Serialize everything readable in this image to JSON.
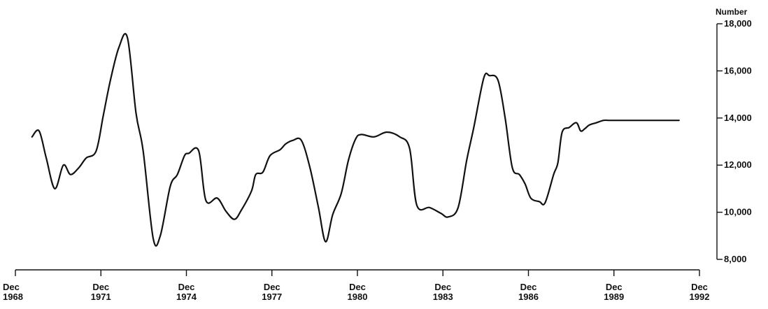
{
  "chart_data": {
    "type": "line",
    "title": "",
    "ylabel": "Number",
    "ylim": [
      8000,
      18000
    ],
    "yticks": [
      8000,
      10000,
      12000,
      14000,
      16000,
      18000
    ],
    "ytick_labels": [
      "8,000",
      "10,000",
      "12,000",
      "14,000",
      "16,000",
      "18,000"
    ],
    "xlim": [
      1968.917,
      1992.917
    ],
    "xticks": [
      1968.917,
      1971.917,
      1974.917,
      1977.917,
      1980.917,
      1983.917,
      1986.917,
      1989.917,
      1992.917
    ],
    "xtick_labels": [
      [
        "Dec",
        "1968"
      ],
      [
        "Dec",
        "1971"
      ],
      [
        "Dec",
        "1974"
      ],
      [
        "Dec",
        "1977"
      ],
      [
        "Dec",
        "1980"
      ],
      [
        "Dec",
        "1983"
      ],
      [
        "Dec",
        "1986"
      ],
      [
        "Dec",
        "1989"
      ],
      [
        "Dec",
        "1992"
      ]
    ],
    "grid": false,
    "y_axis_side": "right",
    "series": [
      {
        "name": "",
        "x": [
          1969.5,
          1969.75,
          1970.0,
          1970.3,
          1970.6,
          1970.85,
          1971.15,
          1971.4,
          1971.75,
          1972.0,
          1972.25,
          1972.55,
          1972.85,
          1973.15,
          1973.4,
          1973.75,
          1974.0,
          1974.35,
          1974.6,
          1974.85,
          1975.0,
          1975.35,
          1975.6,
          1976.0,
          1976.3,
          1976.6,
          1976.85,
          1977.2,
          1977.35,
          1977.6,
          1977.85,
          1978.2,
          1978.4,
          1978.65,
          1978.95,
          1979.25,
          1979.55,
          1979.8,
          1980.05,
          1980.35,
          1980.6,
          1980.85,
          1981.05,
          1981.5,
          1981.95,
          1982.4,
          1982.75,
          1983.0,
          1983.45,
          1983.85,
          1984.1,
          1984.45,
          1984.75,
          1985.0,
          1985.35,
          1985.55,
          1985.85,
          1986.1,
          1986.35,
          1986.6,
          1986.8,
          1987.0,
          1987.3,
          1987.5,
          1987.8,
          1987.95,
          1988.1,
          1988.35,
          1988.6,
          1988.75,
          1988.9,
          1989.05,
          1989.3,
          1989.55,
          1989.75,
          1990.0,
          1990.3,
          1990.55,
          1990.8,
          1991.05,
          1991.3,
          1991.5,
          1991.7,
          1991.95,
          1992.2
        ],
        "values": [
          13200,
          13450,
          12300,
          11000,
          12000,
          11600,
          11900,
          12300,
          12600,
          14100,
          15600,
          17000,
          17400,
          14200,
          12600,
          8900,
          9000,
          11100,
          11600,
          12400,
          12500,
          12600,
          10500,
          10600,
          10050,
          9700,
          10100,
          10900,
          11600,
          11700,
          12400,
          12650,
          12900,
          13050,
          13050,
          11900,
          10200,
          8750,
          9900,
          10800,
          12200,
          13100,
          13300,
          13200,
          13400,
          13200,
          12700,
          10300,
          10200,
          9950,
          9800,
          10200,
          12200,
          13600,
          15700,
          15800,
          15600,
          14000,
          11900,
          11600,
          11200,
          10600,
          10450,
          10400,
          11600,
          12100,
          13400,
          13600,
          13800,
          13450,
          13550,
          13700,
          13800,
          13900,
          13900,
          13900,
          13900,
          13900,
          13900,
          13900,
          13900,
          13900,
          13900,
          13900,
          13900
        ]
      }
    ]
  }
}
